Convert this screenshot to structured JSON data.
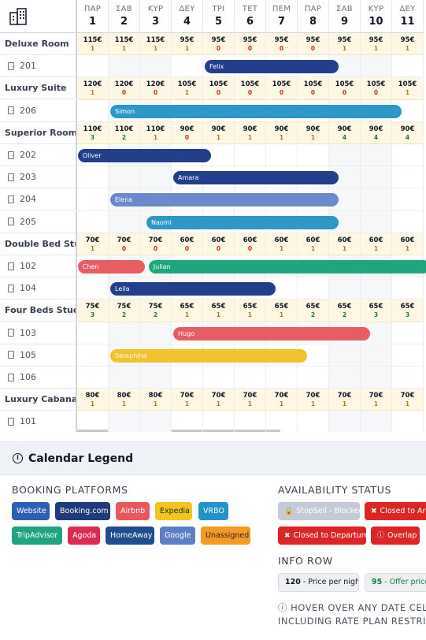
{
  "calendar": {
    "days": [
      {
        "dow": "ΠΑΡ",
        "num": "1"
      },
      {
        "dow": "ΣΑΒ",
        "num": "2"
      },
      {
        "dow": "ΚΥΡ",
        "num": "3"
      },
      {
        "dow": "ΔΕΥ",
        "num": "4"
      },
      {
        "dow": "ΤΡΙ",
        "num": "5"
      },
      {
        "dow": "ΤΕΤ",
        "num": "6"
      },
      {
        "dow": "ΠΕΜ",
        "num": "7"
      },
      {
        "dow": "ΠΑΡ",
        "num": "8"
      },
      {
        "dow": "ΣΑΒ",
        "num": "9"
      },
      {
        "dow": "ΚΥΡ",
        "num": "10"
      },
      {
        "dow": "ΔΕΥ",
        "num": "11"
      }
    ],
    "weekend_days": [
      "2",
      "3",
      "9",
      "10"
    ],
    "rows": [
      {
        "kind": "type",
        "label": "Deluxe Room",
        "prices": [
          "115€",
          "115€",
          "115€",
          "95€",
          "95€",
          "95€",
          "95€",
          "95€",
          "95€",
          "95€",
          "95€"
        ],
        "avail": [
          "1",
          "1",
          "1",
          "1",
          "0",
          "0",
          "0",
          "0",
          "1",
          "1",
          "1"
        ]
      },
      {
        "kind": "room",
        "label": "201"
      },
      {
        "kind": "type",
        "label": "Luxury Suite",
        "prices": [
          "120€",
          "120€",
          "120€",
          "105€",
          "105€",
          "105€",
          "105€",
          "105€",
          "105€",
          "105€",
          "105€"
        ],
        "avail": [
          "1",
          "0",
          "0",
          "1",
          "0",
          "0",
          "0",
          "0",
          "0",
          "0",
          "1"
        ]
      },
      {
        "kind": "room",
        "label": "206"
      },
      {
        "kind": "type",
        "label": "Superior Room",
        "prices": [
          "110€",
          "110€",
          "110€",
          "90€",
          "90€",
          "90€",
          "90€",
          "90€",
          "90€",
          "90€",
          "90€"
        ],
        "avail": [
          "3",
          "2",
          "1",
          "0",
          "1",
          "1",
          "1",
          "1",
          "4",
          "4",
          "4"
        ]
      },
      {
        "kind": "room",
        "label": "202"
      },
      {
        "kind": "room",
        "label": "203"
      },
      {
        "kind": "room",
        "label": "204"
      },
      {
        "kind": "room",
        "label": "205"
      },
      {
        "kind": "type",
        "label": "Double Bed Stu...",
        "prices": [
          "70€",
          "70€",
          "70€",
          "60€",
          "60€",
          "60€",
          "60€",
          "60€",
          "60€",
          "60€",
          "60€"
        ],
        "avail": [
          "1",
          "0",
          "0",
          "0",
          "0",
          "0",
          "1",
          "1",
          "1",
          "1",
          "1"
        ]
      },
      {
        "kind": "room",
        "label": "102"
      },
      {
        "kind": "room",
        "label": "104"
      },
      {
        "kind": "type",
        "label": "Four Beds Studio",
        "prices": [
          "75€",
          "75€",
          "75€",
          "65€",
          "65€",
          "65€",
          "65€",
          "65€",
          "65€",
          "65€",
          "65€"
        ],
        "avail": [
          "3",
          "2",
          "2",
          "1",
          "1",
          "1",
          "1",
          "2",
          "2",
          "3",
          "3"
        ]
      },
      {
        "kind": "room",
        "label": "103"
      },
      {
        "kind": "room",
        "label": "105"
      },
      {
        "kind": "room",
        "label": "106"
      },
      {
        "kind": "type",
        "label": "Luxury Cabana",
        "prices": [
          "80€",
          "80€",
          "80€",
          "70€",
          "70€",
          "70€",
          "70€",
          "70€",
          "70€",
          "70€",
          "70€"
        ],
        "avail": [
          "1",
          "1",
          "1",
          "1",
          "1",
          "1",
          "1",
          "1",
          "1",
          "1",
          "1"
        ]
      },
      {
        "kind": "room",
        "label": "101"
      }
    ],
    "bookings": [
      {
        "guest": "Felix",
        "row": 1,
        "start": 4.05,
        "end": 8.3,
        "color": "#233f8c"
      },
      {
        "guest": "Simon",
        "row": 3,
        "start": 1.05,
        "end": 10.3,
        "color": "#2f97c5"
      },
      {
        "guest": "Oliver",
        "row": 5,
        "start": 0.02,
        "end": 4.25,
        "color": "#233f8c"
      },
      {
        "guest": "Amara",
        "row": 6,
        "start": 3.05,
        "end": 8.3,
        "color": "#233f8c"
      },
      {
        "guest": "Elena",
        "row": 7,
        "start": 1.05,
        "end": 8.3,
        "color": "#6a8acb"
      },
      {
        "guest": "Naomi",
        "row": 8,
        "start": 2.2,
        "end": 8.3,
        "color": "#2f97c5"
      },
      {
        "guest": "Chen",
        "row": 10,
        "start": 0.02,
        "end": 2.15,
        "color": "#e85d64"
      },
      {
        "guest": "Julian",
        "row": 10,
        "start": 2.27,
        "end": 11.2,
        "color": "#1fa67d"
      },
      {
        "guest": "Leila",
        "row": 11,
        "start": 1.05,
        "end": 6.3,
        "color": "#233f8c"
      },
      {
        "guest": "Hugo",
        "row": 13,
        "start": 3.05,
        "end": 9.3,
        "color": "#e85d64"
      },
      {
        "guest": "Seraphina",
        "row": 14,
        "start": 1.05,
        "end": 7.3,
        "color": "#f2c230"
      }
    ]
  },
  "legend": {
    "title": "Calendar Legend",
    "platforms_title": "BOOKING PLATFORMS",
    "platforms": [
      {
        "label": "Website",
        "color": "#2f5fb3"
      },
      {
        "label": "Booking.com",
        "color": "#1f3b7a"
      },
      {
        "label": "Airbnb",
        "color": "#e8575c"
      },
      {
        "label": "Expedia",
        "color": "#f4c51c",
        "text": "#1f2937"
      },
      {
        "label": "VRBO",
        "color": "#2193c9"
      },
      {
        "label": "TripAdvisor",
        "color": "#1ca57f"
      },
      {
        "label": "Agoda",
        "color": "#dc2b53"
      },
      {
        "label": "HomeAway",
        "color": "#1f4d8f"
      },
      {
        "label": "Google",
        "color": "#5b7fc4"
      },
      {
        "label": "Unassigned",
        "color": "#f59a23",
        "text": "#1f2937"
      }
    ],
    "availability_title": "AVAILABILITY STATUS",
    "statuses": [
      {
        "label": "StopSell - Blocked",
        "icon": "lock-icon",
        "glyph": "🔒",
        "color": "#c5cbd6"
      },
      {
        "label": "Closed to Arrival",
        "icon": "circle-x-icon",
        "glyph": "✖",
        "color": "#dc2626"
      },
      {
        "label": "Closed to Departure",
        "icon": "circle-x-icon",
        "glyph": "✖",
        "color": "#dc2626"
      },
      {
        "label": "Overlap",
        "icon": "alert-circle-icon",
        "glyph": "ⓘ",
        "color": "#dc2626"
      }
    ],
    "info_title": "INFO ROW",
    "info_chips": [
      {
        "value": "120",
        "text": " - Price per night",
        "value_color": "#111827",
        "text_color": "#111827"
      },
      {
        "value": "95",
        "text": " - Offer price",
        "value_color": "#15803d",
        "text_color": "#15803d"
      }
    ],
    "hint_line1": "HOVER OVER ANY DATE CELL",
    "hint_line2": "INCLUDING RATE PLAN RESTRIC",
    "colors": {
      "avail_red": "#dc2626",
      "avail_amber": "#b7791f",
      "avail_green": "#15803d"
    }
  }
}
